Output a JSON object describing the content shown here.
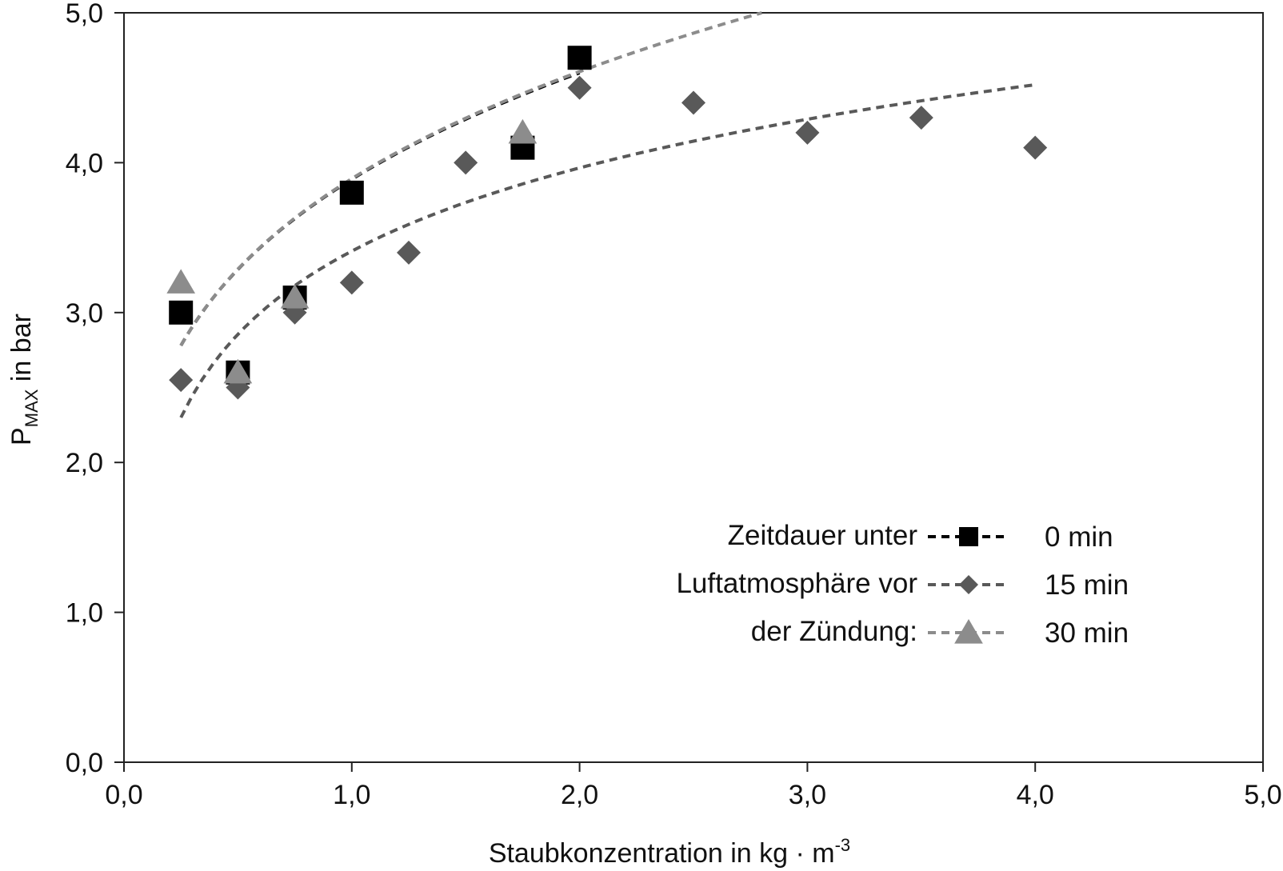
{
  "chart_data": {
    "type": "scatter",
    "xlabel": {
      "main": "Staubkonzentration in kg · m",
      "sup": "-3"
    },
    "ylabel": {
      "main": "P",
      "sub": "MAX",
      "rest": " in bar"
    },
    "xlim": [
      0,
      5
    ],
    "ylim": [
      0,
      5
    ],
    "x_ticks": [
      "0,0",
      "1,0",
      "2,0",
      "3,0",
      "4,0",
      "5,0"
    ],
    "y_ticks": [
      "0,0",
      "1,0",
      "2,0",
      "3,0",
      "4,0",
      "5,0"
    ],
    "grid": false,
    "legend": {
      "position": "bottom-right",
      "title_lines": [
        "Zeitdauer unter",
        "Luftatmosphäre vor",
        "der Zündung:"
      ]
    },
    "series": [
      {
        "name": "0 min",
        "marker": "square",
        "color": "#000000",
        "x": [
          0.25,
          0.5,
          0.75,
          1.0,
          1.75,
          2.0
        ],
        "y": [
          3.0,
          2.6,
          3.1,
          3.8,
          4.1,
          4.7
        ],
        "trend": {
          "type": "power",
          "x_range": [
            0.25,
            2.0
          ],
          "y_at_ends": [
            2.78,
            4.6
          ]
        }
      },
      {
        "name": "15 min",
        "marker": "diamond",
        "color": "#595959",
        "x": [
          0.25,
          0.5,
          0.75,
          1.0,
          1.25,
          1.5,
          2.0,
          2.5,
          3.0,
          3.5,
          4.0
        ],
        "y": [
          2.55,
          2.5,
          3.0,
          3.2,
          3.4,
          4.0,
          4.5,
          4.4,
          4.2,
          4.3,
          4.1
        ],
        "trend": {
          "type": "log",
          "x_range": [
            0.25,
            4.0
          ],
          "y_at_ends": [
            2.3,
            4.52
          ]
        }
      },
      {
        "name": "30 min",
        "marker": "triangle",
        "color": "#8c8c8c",
        "x": [
          0.25,
          0.5,
          0.75,
          1.75
        ],
        "y": [
          3.2,
          2.6,
          3.1,
          4.2
        ],
        "trend": {
          "type": "power",
          "x_range": [
            0.25,
            2.8
          ],
          "y_at_ends": [
            2.78,
            5.0
          ]
        }
      }
    ]
  }
}
